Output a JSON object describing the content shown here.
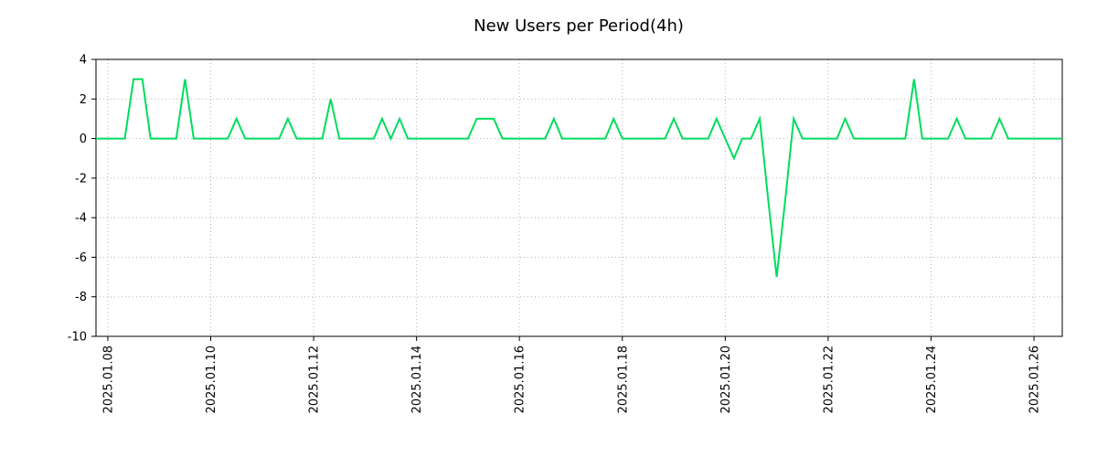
{
  "chart": {
    "colors": {
      "line": "#00dc5e",
      "grid": "#b4b4b4",
      "axis": "#000000",
      "text": "#000000",
      "background": "#ffffff"
    }
  },
  "chart_data": {
    "type": "line",
    "title": "New Users per Period(4h)",
    "xlabel": "",
    "ylabel": "",
    "legend": null,
    "grid": "dotted",
    "x_unit": "date (day of 2025.01, 4-hour bins)",
    "xlim": [
      7.77,
      26.55
    ],
    "ylim": [
      -10,
      4
    ],
    "y_ticks": [
      4,
      2,
      0,
      -2,
      -4,
      -6,
      -8,
      -10
    ],
    "x_ticks": [
      {
        "value": 8,
        "label": "2025.01.08"
      },
      {
        "value": 10,
        "label": "2025.01.10"
      },
      {
        "value": 12,
        "label": "2025.01.12"
      },
      {
        "value": 14,
        "label": "2025.01.14"
      },
      {
        "value": 16,
        "label": "2025.01.16"
      },
      {
        "value": 18,
        "label": "2025.01.18"
      },
      {
        "value": 20,
        "label": "2025.01.20"
      },
      {
        "value": 22,
        "label": "2025.01.22"
      },
      {
        "value": 24,
        "label": "2025.01.24"
      },
      {
        "value": 26,
        "label": "2025.01.26"
      }
    ],
    "series": [
      {
        "name": "New Users",
        "color": "#00dc5e",
        "points": [
          [
            7.77,
            0
          ],
          [
            8.33,
            0
          ],
          [
            8.5,
            3
          ],
          [
            8.67,
            3
          ],
          [
            8.83,
            0
          ],
          [
            9.33,
            0
          ],
          [
            9.5,
            3
          ],
          [
            9.67,
            0
          ],
          [
            10.33,
            0
          ],
          [
            10.5,
            1
          ],
          [
            10.67,
            0
          ],
          [
            11.33,
            0
          ],
          [
            11.5,
            1
          ],
          [
            11.67,
            0
          ],
          [
            12.17,
            0
          ],
          [
            12.33,
            2
          ],
          [
            12.5,
            0
          ],
          [
            13.17,
            0
          ],
          [
            13.33,
            1
          ],
          [
            13.5,
            0
          ],
          [
            13.67,
            1
          ],
          [
            13.83,
            0
          ],
          [
            15.0,
            0
          ],
          [
            15.17,
            1
          ],
          [
            15.5,
            1
          ],
          [
            15.67,
            0
          ],
          [
            16.5,
            0
          ],
          [
            16.67,
            1
          ],
          [
            16.83,
            0
          ],
          [
            17.67,
            0
          ],
          [
            17.83,
            1
          ],
          [
            18.0,
            0
          ],
          [
            18.83,
            0
          ],
          [
            19.0,
            1
          ],
          [
            19.17,
            0
          ],
          [
            19.67,
            0
          ],
          [
            19.83,
            1
          ],
          [
            20.0,
            0
          ],
          [
            20.17,
            -1
          ],
          [
            20.33,
            0
          ],
          [
            20.5,
            0
          ],
          [
            20.67,
            1
          ],
          [
            20.83,
            -3
          ],
          [
            21.0,
            -7
          ],
          [
            21.17,
            -3
          ],
          [
            21.33,
            1
          ],
          [
            21.5,
            0
          ],
          [
            22.17,
            0
          ],
          [
            22.33,
            1
          ],
          [
            22.5,
            0
          ],
          [
            23.5,
            0
          ],
          [
            23.67,
            3
          ],
          [
            23.83,
            0
          ],
          [
            24.33,
            0
          ],
          [
            24.5,
            1
          ],
          [
            24.67,
            0
          ],
          [
            25.17,
            0
          ],
          [
            25.33,
            1
          ],
          [
            25.5,
            0
          ],
          [
            26.55,
            0
          ]
        ]
      }
    ]
  }
}
